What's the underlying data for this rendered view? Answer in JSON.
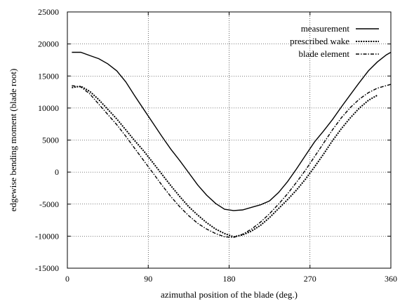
{
  "chart_data": {
    "type": "line",
    "title": "",
    "xlabel": "azimuthal position of the blade (deg.)",
    "ylabel": "edgewise bending moment (blade root)",
    "xlim": [
      0,
      360
    ],
    "ylim": [
      -15000,
      25000
    ],
    "x_ticks": [
      "0",
      "90",
      "180",
      "270",
      "360"
    ],
    "y_ticks": [
      "-15000",
      "-10000",
      "-5000",
      "0",
      "5000",
      "10000",
      "15000",
      "20000",
      "25000"
    ],
    "grid": true,
    "legend_position": "top-right",
    "series": [
      {
        "name": "measurement",
        "style": "solid",
        "points": [
          [
            5,
            18700
          ],
          [
            15,
            18700
          ],
          [
            25,
            18200
          ],
          [
            35,
            17700
          ],
          [
            45,
            16900
          ],
          [
            55,
            15800
          ],
          [
            65,
            14100
          ],
          [
            75,
            11900
          ],
          [
            85,
            9800
          ],
          [
            95,
            7700
          ],
          [
            105,
            5600
          ],
          [
            115,
            3600
          ],
          [
            125,
            1800
          ],
          [
            135,
            -100
          ],
          [
            145,
            -2000
          ],
          [
            155,
            -3600
          ],
          [
            165,
            -4900
          ],
          [
            175,
            -5800
          ],
          [
            185,
            -6000
          ],
          [
            195,
            -5900
          ],
          [
            205,
            -5500
          ],
          [
            215,
            -5100
          ],
          [
            225,
            -4500
          ],
          [
            235,
            -3200
          ],
          [
            245,
            -1500
          ],
          [
            255,
            500
          ],
          [
            265,
            2600
          ],
          [
            275,
            4700
          ],
          [
            285,
            6400
          ],
          [
            295,
            8200
          ],
          [
            305,
            10200
          ],
          [
            315,
            12100
          ],
          [
            325,
            14000
          ],
          [
            335,
            15800
          ],
          [
            345,
            17200
          ],
          [
            355,
            18300
          ],
          [
            360,
            18700
          ]
        ]
      },
      {
        "name": "prescribed wake",
        "style": "dotted",
        "points": [
          [
            5,
            13200
          ],
          [
            15,
            13400
          ],
          [
            25,
            12600
          ],
          [
            35,
            11300
          ],
          [
            45,
            9800
          ],
          [
            55,
            8300
          ],
          [
            65,
            6600
          ],
          [
            75,
            4900
          ],
          [
            85,
            3300
          ],
          [
            95,
            1500
          ],
          [
            105,
            -300
          ],
          [
            115,
            -2100
          ],
          [
            125,
            -3800
          ],
          [
            135,
            -5400
          ],
          [
            145,
            -6700
          ],
          [
            155,
            -7900
          ],
          [
            165,
            -8900
          ],
          [
            175,
            -9600
          ],
          [
            185,
            -10100
          ],
          [
            195,
            -9800
          ],
          [
            205,
            -9200
          ],
          [
            215,
            -8300
          ],
          [
            225,
            -7100
          ],
          [
            235,
            -5700
          ],
          [
            245,
            -4300
          ],
          [
            255,
            -2800
          ],
          [
            265,
            -1100
          ],
          [
            275,
            800
          ],
          [
            285,
            2800
          ],
          [
            295,
            4900
          ],
          [
            305,
            6800
          ],
          [
            315,
            8500
          ],
          [
            325,
            10000
          ],
          [
            335,
            11200
          ],
          [
            345,
            12000
          ]
        ]
      },
      {
        "name": "blade element",
        "style": "dashdot",
        "points": [
          [
            5,
            13500
          ],
          [
            15,
            13300
          ],
          [
            25,
            12200
          ],
          [
            35,
            10600
          ],
          [
            45,
            9000
          ],
          [
            55,
            7400
          ],
          [
            65,
            5600
          ],
          [
            75,
            3700
          ],
          [
            85,
            1800
          ],
          [
            95,
            -100
          ],
          [
            105,
            -2000
          ],
          [
            115,
            -3800
          ],
          [
            125,
            -5400
          ],
          [
            135,
            -6800
          ],
          [
            145,
            -8000
          ],
          [
            155,
            -8900
          ],
          [
            165,
            -9600
          ],
          [
            175,
            -10100
          ],
          [
            185,
            -10200
          ],
          [
            195,
            -9700
          ],
          [
            205,
            -8900
          ],
          [
            215,
            -7800
          ],
          [
            225,
            -6500
          ],
          [
            235,
            -5000
          ],
          [
            245,
            -3400
          ],
          [
            255,
            -1600
          ],
          [
            265,
            300
          ],
          [
            275,
            2400
          ],
          [
            285,
            4500
          ],
          [
            295,
            6600
          ],
          [
            305,
            8500
          ],
          [
            315,
            10100
          ],
          [
            325,
            11400
          ],
          [
            335,
            12400
          ],
          [
            345,
            13100
          ],
          [
            360,
            13700
          ]
        ]
      }
    ]
  }
}
